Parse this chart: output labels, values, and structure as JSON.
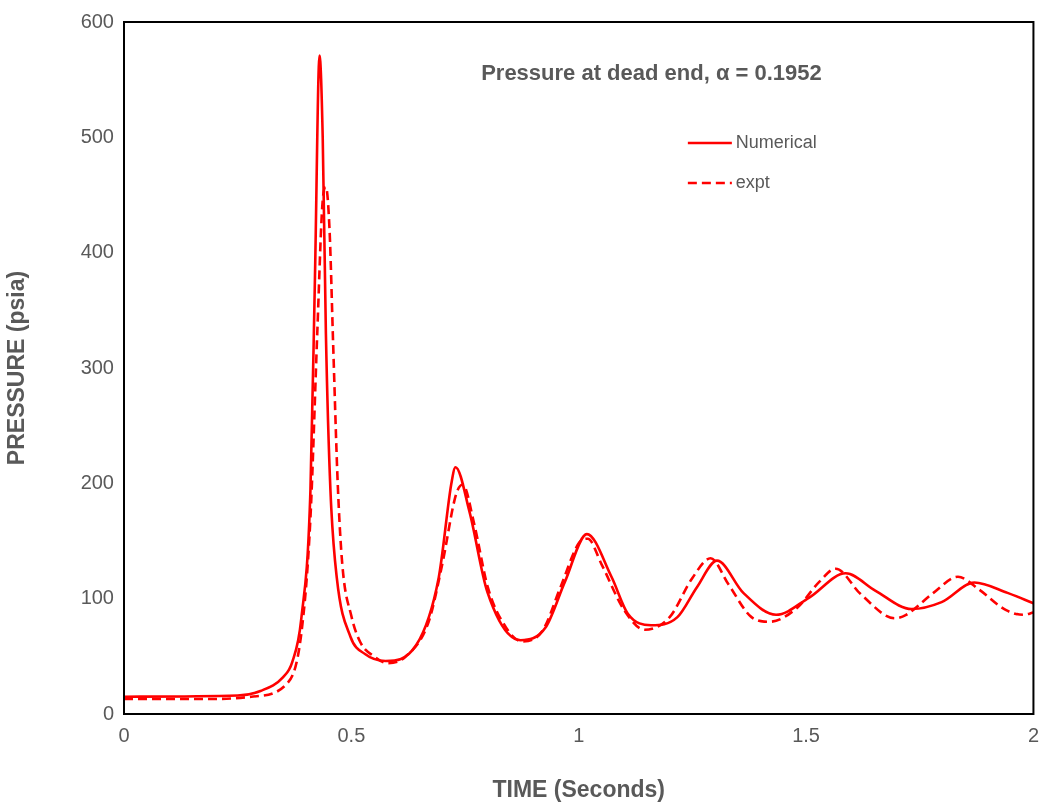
{
  "chart_data": {
    "type": "line",
    "title": "Pressure at dead end, α = 0.1952",
    "xlabel": "TIME (Seconds)",
    "ylabel": "PRESSURE (psia)",
    "xlim": [
      0,
      2
    ],
    "xticks": [
      0,
      0.5,
      1,
      1.5,
      2
    ],
    "ylim": [
      0,
      600
    ],
    "yticks": [
      0,
      100,
      200,
      300,
      400,
      500,
      600
    ],
    "grid": false,
    "legend": "top right",
    "marker": "none",
    "series": [
      {
        "name": "Numerical",
        "color": "#ff0000",
        "line_style": "solid",
        "x": [
          0,
          0.25,
          0.3,
          0.35,
          0.37,
          0.39,
          0.41,
          0.42,
          0.43,
          0.437,
          0.444,
          0.454,
          0.468,
          0.498,
          0.53,
          0.575,
          0.643,
          0.692,
          0.72,
          0.729,
          0.76,
          0.799,
          0.872,
          0.927,
          0.97,
          1.018,
          1.072,
          1.108,
          1.159,
          1.217,
          1.26,
          1.304,
          1.362,
          1.434,
          1.507,
          1.587,
          1.652,
          1.732,
          1.798,
          1.87,
          1.943,
          2
        ],
        "values": [
          15,
          16,
          20,
          32,
          45,
          83,
          194,
          380,
          571,
          500,
          330,
          194,
          118,
          67,
          52,
          46,
          60,
          118,
          200,
          214,
          175,
          106,
          64,
          75,
          115,
          156,
          119,
          87,
          77,
          84,
          110,
          133,
          105,
          86,
          101,
          122,
          107,
          91,
          97,
          114,
          105,
          96
        ]
      },
      {
        "name": "expt",
        "color": "#ff0000",
        "line_style": "dashed",
        "x": [
          0,
          0.2,
          0.28,
          0.36,
          0.39,
          0.41,
          0.425,
          0.436,
          0.444,
          0.452,
          0.46,
          0.47,
          0.48,
          0.5,
          0.52,
          0.55,
          0.58,
          0.62,
          0.67,
          0.7,
          0.73,
          0.745,
          0.77,
          0.8,
          0.84,
          0.875,
          0.92,
          0.96,
          1,
          1.02,
          1.05,
          1.1,
          1.145,
          1.2,
          1.25,
          1.29,
          1.33,
          1.38,
          1.42,
          1.48,
          1.53,
          1.565,
          1.62,
          1.695,
          1.72,
          1.78,
          1.834,
          1.88,
          1.94,
          1.978,
          2
        ],
        "values": [
          13,
          13,
          15,
          27,
          70,
          170,
          330,
          440,
          457,
          420,
          320,
          200,
          130,
          85,
          62,
          50,
          44,
          50,
          80,
          130,
          190,
          199,
          165,
          110,
          75,
          63,
          72,
          110,
          148,
          152,
          130,
          90,
          73,
          84,
          118,
          135,
          112,
          84,
          80,
          92,
          115,
          126,
          104,
          83,
          86,
          105,
          119,
          108,
          90,
          86,
          88
        ]
      }
    ]
  }
}
